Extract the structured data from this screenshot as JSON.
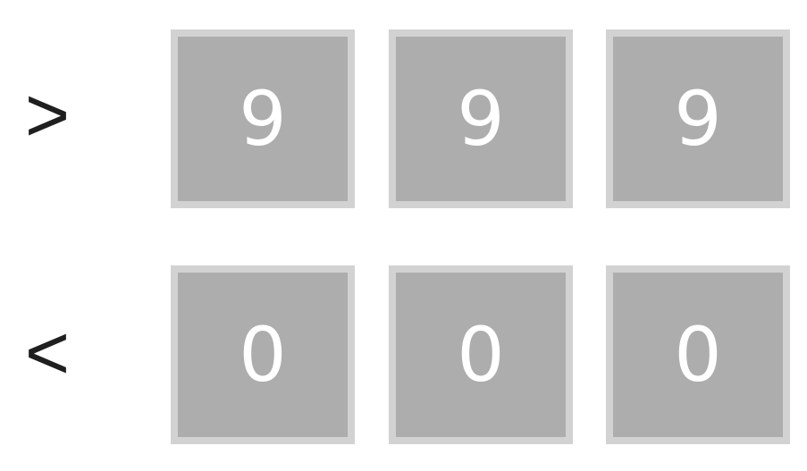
{
  "rows": [
    {
      "operator": ">",
      "digits": [
        "9",
        "9",
        "9"
      ]
    },
    {
      "operator": "<",
      "digits": [
        "0",
        "0",
        "0"
      ]
    }
  ],
  "colors": {
    "background": "#ffffff",
    "box_fill": "#adadad",
    "box_border": "#d2d2d2",
    "digit_text": "#ffffff",
    "operator_text": "#1f1f1f"
  }
}
